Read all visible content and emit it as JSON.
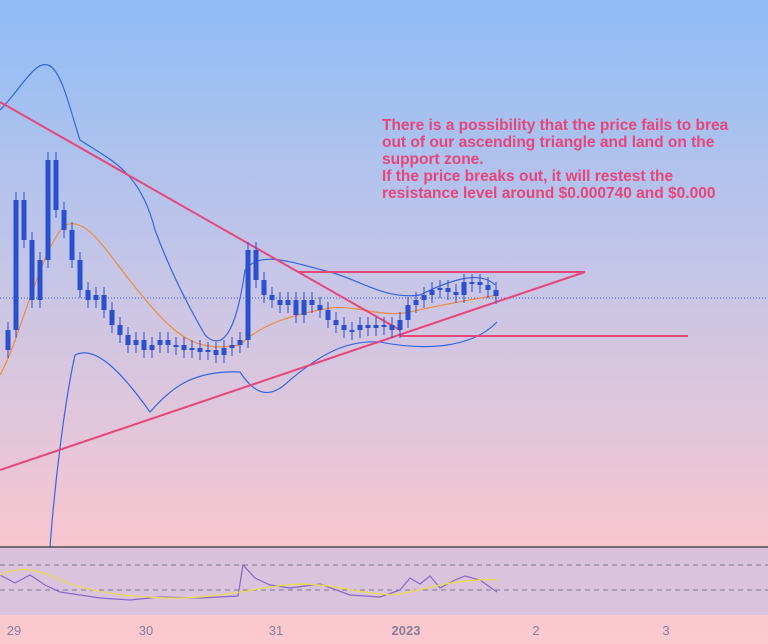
{
  "chart_data": {
    "type": "candlestick",
    "annotation": [
      "There is a possibility that the price fails to brea",
      "out of our ascending triangle and land on the",
      "support zone.",
      "If the price breaks out, it will restest the",
      "resistance level around $0.000740 and $0.000"
    ],
    "x_labels": [
      "29",
      "30",
      "31",
      "2023",
      "2",
      "3"
    ]
  }
}
